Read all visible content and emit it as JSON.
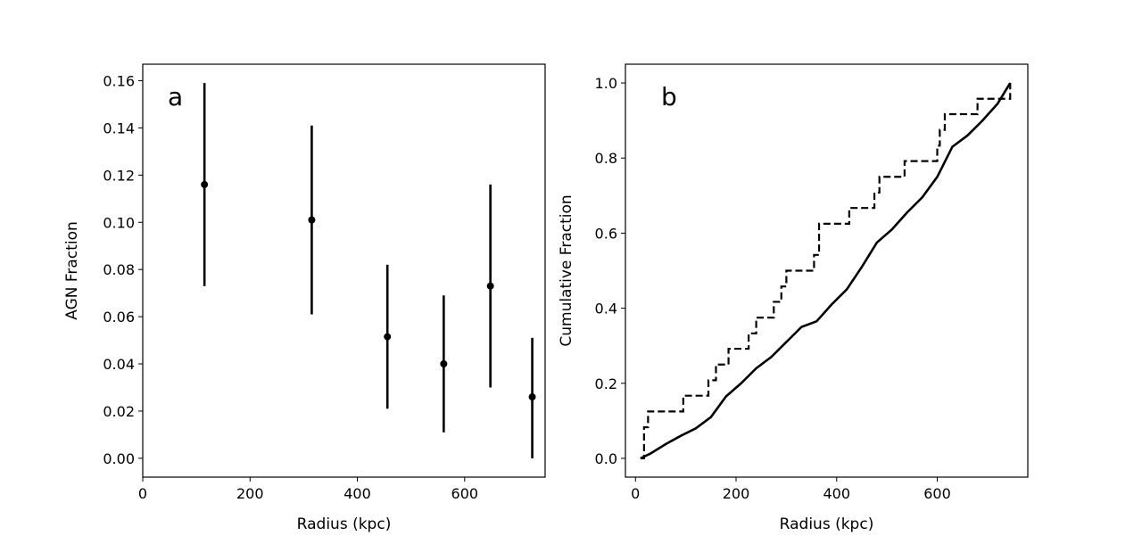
{
  "chart_data": [
    {
      "type": "scatter",
      "panel_label": "a",
      "xlabel": "Radius (kpc)",
      "ylabel": "AGN Fraction",
      "xlim": [
        0,
        750
      ],
      "ylim": [
        -0.008,
        0.167
      ],
      "xticks": [
        0,
        200,
        400,
        600
      ],
      "yticks": [
        0.0,
        0.02,
        0.04,
        0.06,
        0.08,
        0.1,
        0.12,
        0.14,
        0.16
      ],
      "ytick_labels": [
        "0.00",
        "0.02",
        "0.04",
        "0.06",
        "0.08",
        "0.10",
        "0.12",
        "0.14",
        "0.16"
      ],
      "grid": false,
      "points": [
        {
          "x": 115,
          "y": 0.116,
          "ylow": 0.073,
          "yhigh": 0.159
        },
        {
          "x": 315,
          "y": 0.101,
          "ylow": 0.061,
          "yhigh": 0.141
        },
        {
          "x": 456,
          "y": 0.0515,
          "ylow": 0.021,
          "yhigh": 0.082
        },
        {
          "x": 561,
          "y": 0.04,
          "ylow": 0.011,
          "yhigh": 0.069
        },
        {
          "x": 648,
          "y": 0.073,
          "ylow": 0.03,
          "yhigh": 0.116
        },
        {
          "x": 726,
          "y": 0.026,
          "ylow": 0.0,
          "yhigh": 0.051
        }
      ]
    },
    {
      "type": "line",
      "panel_label": "b",
      "xlabel": "Radius (kpc)",
      "ylabel": "Cumulative Fraction",
      "xlim": [
        -20,
        780
      ],
      "ylim": [
        -0.05,
        1.05
      ],
      "xticks": [
        0,
        200,
        400,
        600
      ],
      "yticks": [
        0.0,
        0.2,
        0.4,
        0.6,
        0.8,
        1.0
      ],
      "ytick_labels": [
        "0.0",
        "0.2",
        "0.4",
        "0.6",
        "0.8",
        "1.0"
      ],
      "grid": false,
      "series": [
        {
          "style": "dashed",
          "step": true,
          "x": [
            10,
            17,
            25,
            95,
            145,
            160,
            185,
            225,
            240,
            275,
            290,
            300,
            355,
            365,
            425,
            475,
            485,
            535,
            600,
            605,
            615,
            680,
            690,
            745
          ],
          "y": [
            0.0,
            0.083,
            0.125,
            0.167,
            0.208,
            0.25,
            0.292,
            0.333,
            0.375,
            0.417,
            0.458,
            0.5,
            0.542,
            0.625,
            0.667,
            0.708,
            0.75,
            0.792,
            0.833,
            0.875,
            0.917,
            0.958,
            0.958,
            1.0
          ]
        },
        {
          "style": "solid",
          "step": false,
          "x": [
            10,
            30,
            60,
            90,
            120,
            150,
            180,
            210,
            240,
            270,
            300,
            330,
            360,
            390,
            420,
            450,
            480,
            510,
            540,
            570,
            600,
            630,
            660,
            690,
            720,
            745
          ],
          "y": [
            0.0,
            0.013,
            0.038,
            0.06,
            0.08,
            0.11,
            0.165,
            0.2,
            0.24,
            0.27,
            0.31,
            0.35,
            0.365,
            0.41,
            0.45,
            0.51,
            0.575,
            0.61,
            0.655,
            0.695,
            0.75,
            0.83,
            0.86,
            0.9,
            0.945,
            1.0
          ]
        }
      ]
    }
  ]
}
